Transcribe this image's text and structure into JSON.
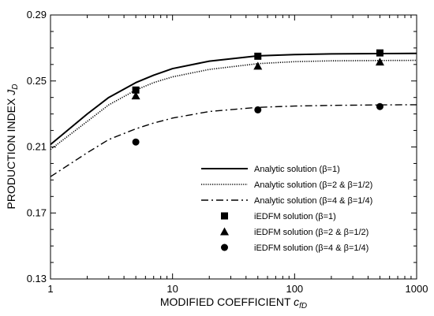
{
  "chart_data": {
    "type": "line",
    "x_scale": "log",
    "xlim": [
      1,
      1000
    ],
    "ylim": [
      0.13,
      0.29
    ],
    "x_ticks": [
      1,
      10,
      100,
      1000
    ],
    "y_ticks": [
      0.13,
      0.17,
      0.21,
      0.25,
      0.29
    ],
    "x_tick_labels": [
      "1",
      "10",
      "100",
      "1000"
    ],
    "y_tick_labels": [
      "0.13",
      "0.17",
      "0.21",
      "0.25",
      "0.29"
    ],
    "xlabel_main": "MODIFIED COEFFICIENT ",
    "xlabel_symbol": "c",
    "xlabel_sub": "fD",
    "ylabel_main": "PRODUCTION INDEX ",
    "ylabel_symbol": "J",
    "ylabel_sub": "D",
    "grid": false,
    "legend_position": "bottom-right",
    "series": [
      {
        "name": "Analytic solution (β=1)",
        "kind": "line",
        "style": "solid",
        "x": [
          1,
          2,
          3,
          5,
          7,
          10,
          20,
          50,
          100,
          200,
          500,
          1000
        ],
        "y": [
          0.2115,
          0.23,
          0.24,
          0.249,
          0.2535,
          0.2575,
          0.262,
          0.2652,
          0.266,
          0.2664,
          0.2666,
          0.2667
        ]
      },
      {
        "name": "Analytic solution (β=2 & β=1/2)",
        "kind": "line",
        "style": "dotted",
        "x": [
          1,
          2,
          3,
          5,
          7,
          10,
          20,
          50,
          100,
          200,
          500,
          1000
        ],
        "y": [
          0.2085,
          0.2255,
          0.2355,
          0.2445,
          0.249,
          0.2525,
          0.257,
          0.2605,
          0.2617,
          0.2622,
          0.2624,
          0.2625
        ]
      },
      {
        "name": "Analytic solution (β=4 & β=1/4)",
        "kind": "line",
        "style": "dashdot",
        "x": [
          1,
          2,
          3,
          5,
          7,
          10,
          20,
          50,
          100,
          200,
          500,
          1000
        ],
        "y": [
          0.192,
          0.2065,
          0.2145,
          0.221,
          0.2245,
          0.2275,
          0.2315,
          0.234,
          0.2348,
          0.2352,
          0.2355,
          0.2356
        ]
      },
      {
        "name": "iEDFM solution (β=1)",
        "kind": "marker",
        "marker": "square",
        "x": [
          5,
          50,
          500
        ],
        "y": [
          0.2445,
          0.265,
          0.267
        ]
      },
      {
        "name": "iEDFM solution (β=2 & β=1/2)",
        "kind": "marker",
        "marker": "triangle",
        "x": [
          5,
          50,
          500
        ],
        "y": [
          0.241,
          0.259,
          0.2615
        ]
      },
      {
        "name": "iEDFM solution (β=4 & β=1/4)",
        "kind": "marker",
        "marker": "circle",
        "x": [
          5,
          50,
          500
        ],
        "y": [
          0.213,
          0.2325,
          0.2345
        ]
      }
    ]
  }
}
